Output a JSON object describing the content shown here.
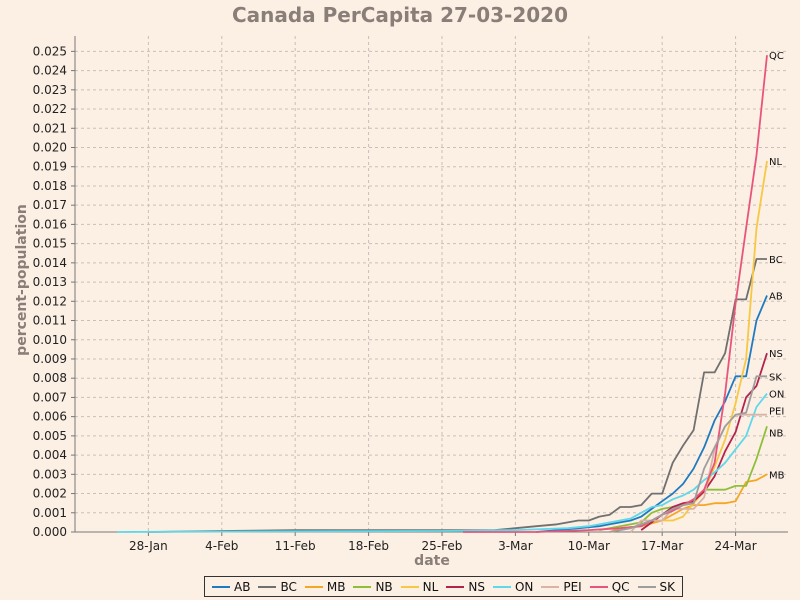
{
  "chart_data": {
    "type": "line",
    "title": "Canada PerCapita 27-03-2020",
    "xlabel": "date",
    "ylabel": "percent-population",
    "x_tick_labels": [
      "28-Jan",
      "4-Feb",
      "11-Feb",
      "18-Feb",
      "25-Feb",
      "3-Mar",
      "10-Mar",
      "17-Mar",
      "24-Mar"
    ],
    "x_tick_dates": [
      "2020-01-28",
      "2020-02-04",
      "2020-02-11",
      "2020-02-18",
      "2020-02-25",
      "2020-03-03",
      "2020-03-10",
      "2020-03-17",
      "2020-03-24"
    ],
    "xlim": [
      "2020-01-21",
      "2020-03-29"
    ],
    "ylim": [
      0,
      0.0258
    ],
    "y_ticks": [
      "0.000",
      "0.001",
      "0.002",
      "0.003",
      "0.004",
      "0.005",
      "0.006",
      "0.007",
      "0.008",
      "0.009",
      "0.010",
      "0.011",
      "0.012",
      "0.013",
      "0.014",
      "0.015",
      "0.016",
      "0.017",
      "0.018",
      "0.019",
      "0.020",
      "0.021",
      "0.022",
      "0.023",
      "0.024",
      "0.025"
    ],
    "grid": true,
    "legend_position": "bottom",
    "series": [
      {
        "name": "AB",
        "color": "#1f7bc0",
        "end_label": "AB",
        "points": [
          [
            "2020-03-05",
            0.0
          ],
          [
            "2020-03-07",
            0.0001
          ],
          [
            "2020-03-09",
            0.0002
          ],
          [
            "2020-03-11",
            0.0003
          ],
          [
            "2020-03-12",
            0.0004
          ],
          [
            "2020-03-13",
            0.0005
          ],
          [
            "2020-03-14",
            0.0006
          ],
          [
            "2020-03-15",
            0.0008
          ],
          [
            "2020-03-16",
            0.0012
          ],
          [
            "2020-03-17",
            0.0016
          ],
          [
            "2020-03-18",
            0.002
          ],
          [
            "2020-03-19",
            0.0025
          ],
          [
            "2020-03-20",
            0.0033
          ],
          [
            "2020-03-21",
            0.0044
          ],
          [
            "2020-03-22",
            0.0058
          ],
          [
            "2020-03-23",
            0.0068
          ],
          [
            "2020-03-24",
            0.0081
          ],
          [
            "2020-03-25",
            0.0081
          ],
          [
            "2020-03-26",
            0.011
          ],
          [
            "2020-03-27",
            0.0123
          ]
        ]
      },
      {
        "name": "BC",
        "color": "#707070",
        "end_label": "BC",
        "points": [
          [
            "2020-01-28",
            0.0
          ],
          [
            "2020-02-04",
            5e-05
          ],
          [
            "2020-02-11",
            0.0001
          ],
          [
            "2020-02-18",
            0.0001
          ],
          [
            "2020-02-25",
            0.0001
          ],
          [
            "2020-03-01",
            0.0001
          ],
          [
            "2020-03-03",
            0.0002
          ],
          [
            "2020-03-05",
            0.0003
          ],
          [
            "2020-03-07",
            0.0004
          ],
          [
            "2020-03-09",
            0.0006
          ],
          [
            "2020-03-10",
            0.0006
          ],
          [
            "2020-03-11",
            0.0008
          ],
          [
            "2020-03-12",
            0.0009
          ],
          [
            "2020-03-13",
            0.0013
          ],
          [
            "2020-03-14",
            0.0013
          ],
          [
            "2020-03-15",
            0.0014
          ],
          [
            "2020-03-16",
            0.002
          ],
          [
            "2020-03-17",
            0.002
          ],
          [
            "2020-03-18",
            0.0036
          ],
          [
            "2020-03-19",
            0.0045
          ],
          [
            "2020-03-20",
            0.0053
          ],
          [
            "2020-03-21",
            0.0083
          ],
          [
            "2020-03-22",
            0.0083
          ],
          [
            "2020-03-23",
            0.0093
          ],
          [
            "2020-03-24",
            0.0121
          ],
          [
            "2020-03-25",
            0.0121
          ],
          [
            "2020-03-26",
            0.0142
          ],
          [
            "2020-03-27",
            0.0142
          ]
        ]
      },
      {
        "name": "MB",
        "color": "#f5a623",
        "end_label": "MB",
        "points": [
          [
            "2020-03-12",
            0.0
          ],
          [
            "2020-03-13",
            0.0002
          ],
          [
            "2020-03-15",
            0.0003
          ],
          [
            "2020-03-17",
            0.0006
          ],
          [
            "2020-03-19",
            0.0012
          ],
          [
            "2020-03-20",
            0.0014
          ],
          [
            "2020-03-21",
            0.0014
          ],
          [
            "2020-03-22",
            0.0015
          ],
          [
            "2020-03-23",
            0.0015
          ],
          [
            "2020-03-24",
            0.0016
          ],
          [
            "2020-03-25",
            0.0026
          ],
          [
            "2020-03-26",
            0.0027
          ],
          [
            "2020-03-27",
            0.003
          ]
        ]
      },
      {
        "name": "NB",
        "color": "#8fbf3a",
        "end_label": "NB",
        "points": [
          [
            "2020-03-11",
            0.0001
          ],
          [
            "2020-03-13",
            0.0003
          ],
          [
            "2020-03-15",
            0.0005
          ],
          [
            "2020-03-16",
            0.001
          ],
          [
            "2020-03-17",
            0.0012
          ],
          [
            "2020-03-18",
            0.0013
          ],
          [
            "2020-03-19",
            0.0014
          ],
          [
            "2020-03-20",
            0.0015
          ],
          [
            "2020-03-21",
            0.0022
          ],
          [
            "2020-03-22",
            0.0022
          ],
          [
            "2020-03-23",
            0.0022
          ],
          [
            "2020-03-24",
            0.0024
          ],
          [
            "2020-03-25",
            0.0024
          ],
          [
            "2020-03-26",
            0.0038
          ],
          [
            "2020-03-27",
            0.0055
          ]
        ]
      },
      {
        "name": "NL",
        "color": "#f7c842",
        "end_label": "NL",
        "points": [
          [
            "2020-03-14",
            0.0002
          ],
          [
            "2020-03-16",
            0.0006
          ],
          [
            "2020-03-17",
            0.0006
          ],
          [
            "2020-03-18",
            0.0006
          ],
          [
            "2020-03-19",
            0.0008
          ],
          [
            "2020-03-20",
            0.0015
          ],
          [
            "2020-03-21",
            0.0021
          ],
          [
            "2020-03-22",
            0.0034
          ],
          [
            "2020-03-23",
            0.0048
          ],
          [
            "2020-03-24",
            0.0067
          ],
          [
            "2020-03-25",
            0.009
          ],
          [
            "2020-03-26",
            0.0158
          ],
          [
            "2020-03-27",
            0.0193
          ]
        ]
      },
      {
        "name": "NS",
        "color": "#b3234d",
        "end_label": "NS",
        "points": [
          [
            "2020-03-15",
            0.0001
          ],
          [
            "2020-03-16",
            0.0005
          ],
          [
            "2020-03-17",
            0.0009
          ],
          [
            "2020-03-18",
            0.0013
          ],
          [
            "2020-03-19",
            0.0015
          ],
          [
            "2020-03-20",
            0.0016
          ],
          [
            "2020-03-21",
            0.0021
          ],
          [
            "2020-03-22",
            0.0029
          ],
          [
            "2020-03-23",
            0.0042
          ],
          [
            "2020-03-24",
            0.0052
          ],
          [
            "2020-03-25",
            0.007
          ],
          [
            "2020-03-26",
            0.0076
          ],
          [
            "2020-03-27",
            0.0093
          ]
        ]
      },
      {
        "name": "ON",
        "color": "#5fd8ea",
        "end_label": "ON",
        "points": [
          [
            "2020-01-25",
            0.0
          ],
          [
            "2020-02-04",
            2e-05
          ],
          [
            "2020-02-25",
            5e-05
          ],
          [
            "2020-03-03",
            0.0001
          ],
          [
            "2020-03-08",
            0.0002
          ],
          [
            "2020-03-10",
            0.0003
          ],
          [
            "2020-03-12",
            0.0005
          ],
          [
            "2020-03-14",
            0.0007
          ],
          [
            "2020-03-15",
            0.001
          ],
          [
            "2020-03-16",
            0.0013
          ],
          [
            "2020-03-17",
            0.0014
          ],
          [
            "2020-03-18",
            0.0017
          ],
          [
            "2020-03-19",
            0.0019
          ],
          [
            "2020-03-20",
            0.0022
          ],
          [
            "2020-03-21",
            0.0027
          ],
          [
            "2020-03-22",
            0.0031
          ],
          [
            "2020-03-23",
            0.0036
          ],
          [
            "2020-03-24",
            0.0043
          ],
          [
            "2020-03-25",
            0.005
          ],
          [
            "2020-03-26",
            0.0065
          ],
          [
            "2020-03-27",
            0.0072
          ]
        ]
      },
      {
        "name": "PEI",
        "color": "#d9b4a6",
        "end_label": "PEI",
        "points": [
          [
            "2020-03-14",
            0.0
          ],
          [
            "2020-03-15",
            0.0006
          ],
          [
            "2020-03-17",
            0.0006
          ],
          [
            "2020-03-18",
            0.0012
          ],
          [
            "2020-03-20",
            0.0012
          ],
          [
            "2020-03-21",
            0.0018
          ],
          [
            "2020-03-22",
            0.0043
          ],
          [
            "2020-03-23",
            0.0055
          ],
          [
            "2020-03-24",
            0.0061
          ],
          [
            "2020-03-25",
            0.0061
          ],
          [
            "2020-03-26",
            0.0061
          ],
          [
            "2020-03-27",
            0.0061
          ]
        ]
      },
      {
        "name": "QC",
        "color": "#e8557a",
        "end_label": "QC",
        "points": [
          [
            "2020-02-27",
            0.0
          ],
          [
            "2020-03-05",
            0.0
          ],
          [
            "2020-03-10",
            0.0001
          ],
          [
            "2020-03-13",
            0.0002
          ],
          [
            "2020-03-15",
            0.0003
          ],
          [
            "2020-03-16",
            0.0006
          ],
          [
            "2020-03-17",
            0.0009
          ],
          [
            "2020-03-18",
            0.0011
          ],
          [
            "2020-03-19",
            0.0014
          ],
          [
            "2020-03-20",
            0.0017
          ],
          [
            "2020-03-21",
            0.0022
          ],
          [
            "2020-03-22",
            0.0036
          ],
          [
            "2020-03-23",
            0.0072
          ],
          [
            "2020-03-24",
            0.0119
          ],
          [
            "2020-03-25",
            0.0158
          ],
          [
            "2020-03-26",
            0.0196
          ],
          [
            "2020-03-27",
            0.0248
          ]
        ]
      },
      {
        "name": "SK",
        "color": "#9e9e9e",
        "end_label": "SK",
        "points": [
          [
            "2020-03-12",
            0.0
          ],
          [
            "2020-03-14",
            0.0002
          ],
          [
            "2020-03-16",
            0.0006
          ],
          [
            "2020-03-18",
            0.0012
          ],
          [
            "2020-03-19",
            0.0014
          ],
          [
            "2020-03-20",
            0.0015
          ],
          [
            "2020-03-21",
            0.0033
          ],
          [
            "2020-03-22",
            0.0044
          ],
          [
            "2020-03-23",
            0.0055
          ],
          [
            "2020-03-24",
            0.0061
          ],
          [
            "2020-03-25",
            0.0062
          ],
          [
            "2020-03-26",
            0.0081
          ],
          [
            "2020-03-27",
            0.0081
          ]
        ]
      }
    ]
  }
}
